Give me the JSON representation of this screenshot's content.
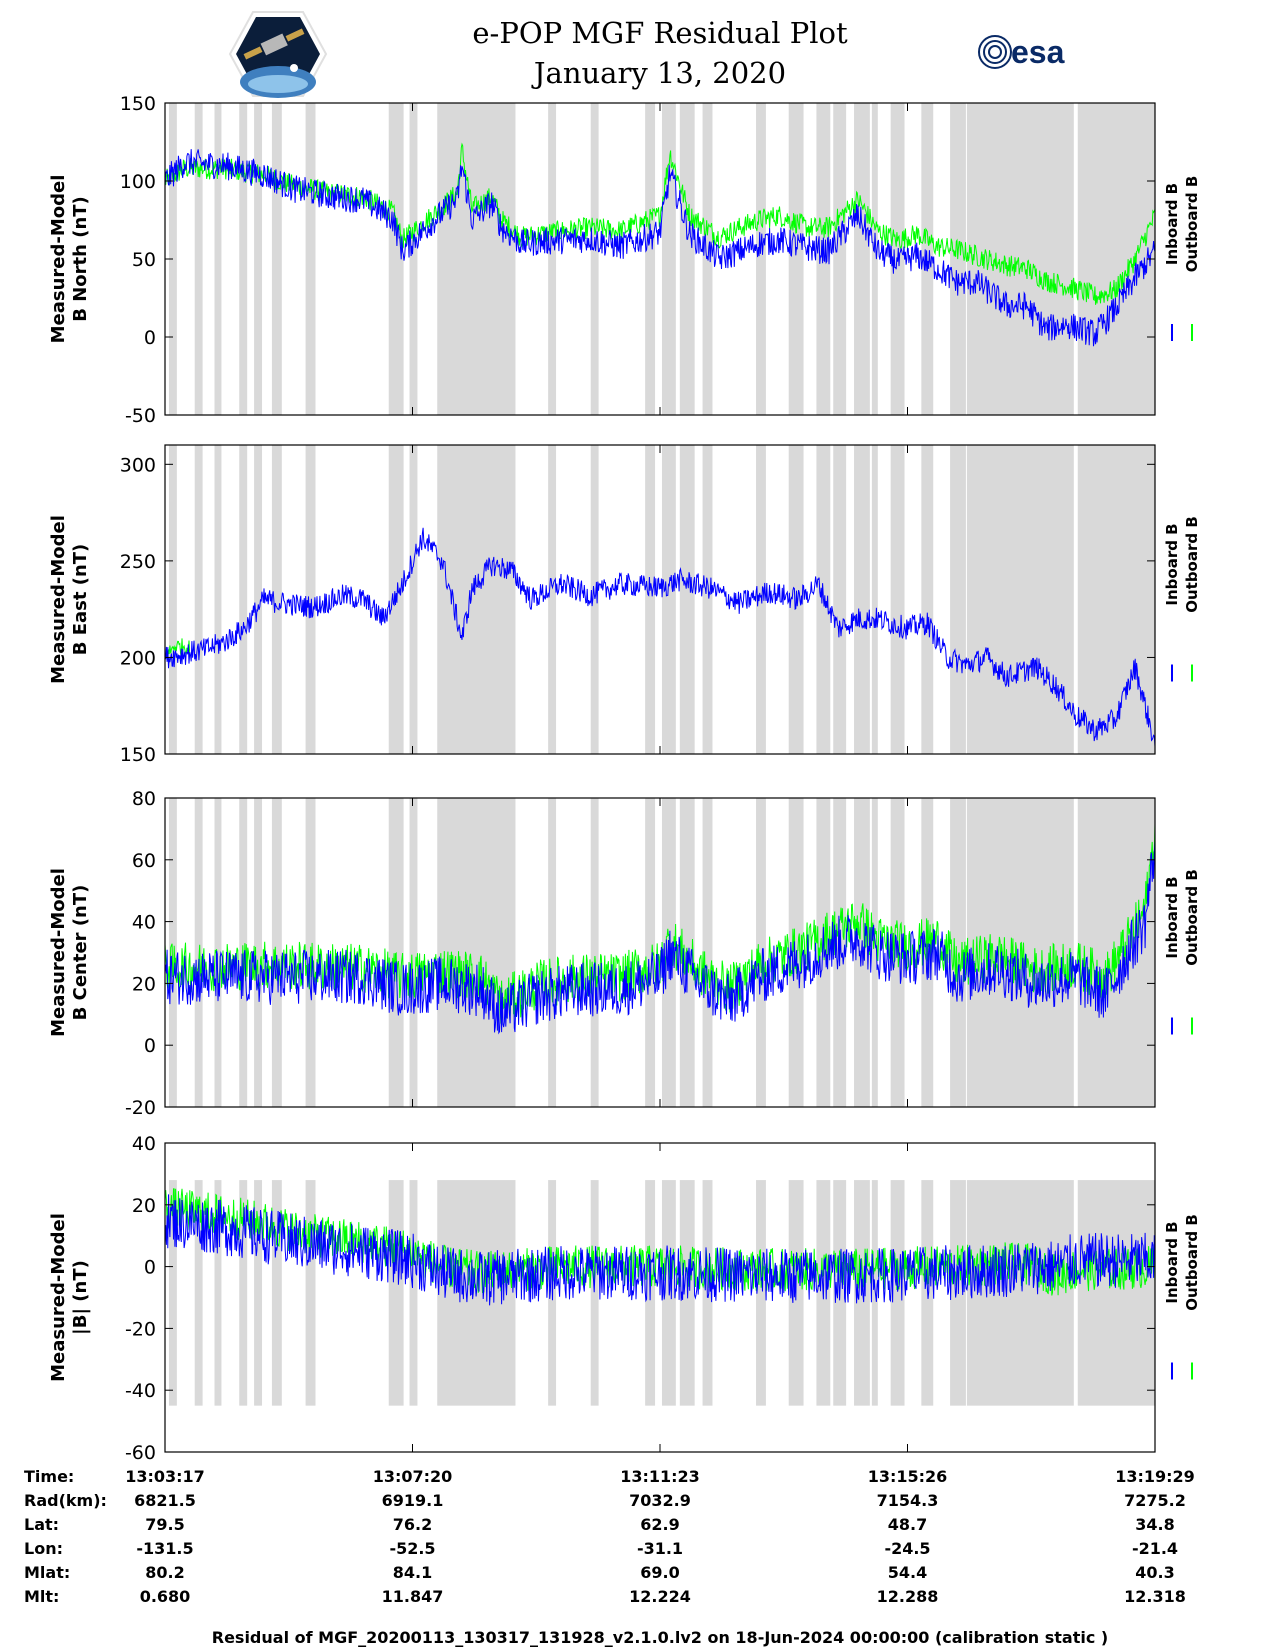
{
  "title": "e-POP MGF Residual Plot",
  "subtitle": "January 13, 2020",
  "logos": {
    "left_icon": "cassiope-mission-logo",
    "right_text": "esa"
  },
  "colors": {
    "inboard": "#0000ff",
    "outboard": "#00ff00",
    "shade": "#d9d9d9"
  },
  "chart_data": [
    {
      "type": "line",
      "ylabel_line1": "Measured-Model",
      "ylabel_line2": "B North (nT)",
      "ylim": [
        -50,
        150
      ],
      "yticks": [
        150,
        100,
        50,
        0,
        -50
      ],
      "legend": [
        "Inboard B",
        "Outboard B"
      ],
      "series": [
        {
          "name": "Inboard B",
          "key": [
            [
              0,
              100
            ],
            [
              0.02,
              112
            ],
            [
              0.06,
              110
            ],
            [
              0.1,
              104
            ],
            [
              0.13,
              95
            ],
            [
              0.17,
              90
            ],
            [
              0.2,
              88
            ],
            [
              0.23,
              76
            ],
            [
              0.24,
              55
            ],
            [
              0.27,
              74
            ],
            [
              0.295,
              88
            ],
            [
              0.3,
              110
            ],
            [
              0.31,
              75
            ],
            [
              0.33,
              86
            ],
            [
              0.34,
              70
            ],
            [
              0.36,
              60
            ],
            [
              0.4,
              62
            ],
            [
              0.43,
              63
            ],
            [
              0.46,
              58
            ],
            [
              0.5,
              67
            ],
            [
              0.51,
              105
            ],
            [
              0.53,
              66
            ],
            [
              0.56,
              50
            ],
            [
              0.58,
              55
            ],
            [
              0.6,
              60
            ],
            [
              0.62,
              62
            ],
            [
              0.65,
              57
            ],
            [
              0.67,
              55
            ],
            [
              0.7,
              78
            ],
            [
              0.72,
              55
            ],
            [
              0.74,
              48
            ],
            [
              0.76,
              52
            ],
            [
              0.78,
              44
            ],
            [
              0.8,
              35
            ],
            [
              0.82,
              35
            ],
            [
              0.85,
              20
            ],
            [
              0.87,
              20
            ],
            [
              0.89,
              5
            ],
            [
              0.91,
              8
            ],
            [
              0.94,
              2
            ],
            [
              0.96,
              18
            ],
            [
              0.98,
              38
            ],
            [
              1.0,
              55
            ]
          ],
          "noise": 9
        },
        {
          "name": "Outboard B",
          "key": [
            [
              0,
              100
            ],
            [
              0.02,
              108
            ],
            [
              0.06,
              108
            ],
            [
              0.1,
              104
            ],
            [
              0.13,
              97
            ],
            [
              0.17,
              92
            ],
            [
              0.2,
              90
            ],
            [
              0.23,
              80
            ],
            [
              0.24,
              62
            ],
            [
              0.27,
              78
            ],
            [
              0.295,
              92
            ],
            [
              0.3,
              120
            ],
            [
              0.31,
              82
            ],
            [
              0.33,
              90
            ],
            [
              0.34,
              75
            ],
            [
              0.36,
              64
            ],
            [
              0.4,
              68
            ],
            [
              0.43,
              70
            ],
            [
              0.46,
              68
            ],
            [
              0.5,
              78
            ],
            [
              0.51,
              118
            ],
            [
              0.53,
              78
            ],
            [
              0.56,
              64
            ],
            [
              0.58,
              70
            ],
            [
              0.6,
              75
            ],
            [
              0.62,
              78
            ],
            [
              0.65,
              70
            ],
            [
              0.67,
              70
            ],
            [
              0.7,
              88
            ],
            [
              0.72,
              68
            ],
            [
              0.74,
              62
            ],
            [
              0.76,
              66
            ],
            [
              0.78,
              58
            ],
            [
              0.8,
              56
            ],
            [
              0.82,
              52
            ],
            [
              0.85,
              46
            ],
            [
              0.87,
              44
            ],
            [
              0.89,
              36
            ],
            [
              0.91,
              33
            ],
            [
              0.94,
              26
            ],
            [
              0.96,
              30
            ],
            [
              0.98,
              50
            ],
            [
              1.0,
              78
            ]
          ],
          "noise": 7
        }
      ]
    },
    {
      "type": "line",
      "ylabel_line1": "Measured-Model",
      "ylabel_line2": "B East (nT)",
      "ylim": [
        150,
        310
      ],
      "yticks": [
        300,
        250,
        200,
        150
      ],
      "legend": [
        "Inboard B",
        "Outboard B"
      ],
      "series": [
        {
          "name": "Inboard B",
          "key": [
            [
              0,
              200
            ],
            [
              0.02,
              202
            ],
            [
              0.04,
              204
            ],
            [
              0.06,
              208
            ],
            [
              0.08,
              215
            ],
            [
              0.1,
              230
            ],
            [
              0.12,
              228
            ],
            [
              0.15,
              226
            ],
            [
              0.18,
              232
            ],
            [
              0.2,
              230
            ],
            [
              0.22,
              220
            ],
            [
              0.24,
              238
            ],
            [
              0.26,
              262
            ],
            [
              0.28,
              250
            ],
            [
              0.3,
              210
            ],
            [
              0.31,
              235
            ],
            [
              0.33,
              248
            ],
            [
              0.35,
              245
            ],
            [
              0.37,
              230
            ],
            [
              0.4,
              238
            ],
            [
              0.43,
              232
            ],
            [
              0.46,
              238
            ],
            [
              0.5,
              236
            ],
            [
              0.52,
              240
            ],
            [
              0.55,
              236
            ],
            [
              0.58,
              228
            ],
            [
              0.61,
              234
            ],
            [
              0.64,
              230
            ],
            [
              0.66,
              238
            ],
            [
              0.68,
              215
            ],
            [
              0.7,
              220
            ],
            [
              0.72,
              220
            ],
            [
              0.75,
              215
            ],
            [
              0.77,
              218
            ],
            [
              0.79,
              200
            ],
            [
              0.81,
              196
            ],
            [
              0.83,
              200
            ],
            [
              0.85,
              190
            ],
            [
              0.88,
              195
            ],
            [
              0.9,
              185
            ],
            [
              0.92,
              170
            ],
            [
              0.94,
              162
            ],
            [
              0.96,
              168
            ],
            [
              0.98,
              195
            ],
            [
              1.0,
              155
            ]
          ],
          "noise": 6
        },
        {
          "name": "Outboard B",
          "key": [
            [
              0,
              200
            ],
            [
              0.01,
              206
            ],
            [
              0.02,
              206
            ],
            [
              0.025,
              205
            ]
          ],
          "noise": 4
        }
      ]
    },
    {
      "type": "line",
      "ylabel_line1": "Measured-Model",
      "ylabel_line2": "B Center (nT)",
      "ylim": [
        -20,
        80
      ],
      "yticks": [
        80,
        60,
        40,
        20,
        0,
        -20
      ],
      "legend": [
        "Inboard B",
        "Outboard B"
      ],
      "series": [
        {
          "name": "Inboard B",
          "key": [
            [
              0,
              22
            ],
            [
              0.1,
              22
            ],
            [
              0.2,
              22
            ],
            [
              0.24,
              18
            ],
            [
              0.28,
              20
            ],
            [
              0.32,
              18
            ],
            [
              0.34,
              10
            ],
            [
              0.38,
              16
            ],
            [
              0.42,
              18
            ],
            [
              0.46,
              18
            ],
            [
              0.5,
              22
            ],
            [
              0.51,
              30
            ],
            [
              0.54,
              20
            ],
            [
              0.57,
              14
            ],
            [
              0.6,
              22
            ],
            [
              0.65,
              28
            ],
            [
              0.67,
              32
            ],
            [
              0.7,
              35
            ],
            [
              0.72,
              30
            ],
            [
              0.75,
              28
            ],
            [
              0.78,
              30
            ],
            [
              0.8,
              22
            ],
            [
              0.84,
              25
            ],
            [
              0.88,
              20
            ],
            [
              0.92,
              22
            ],
            [
              0.95,
              16
            ],
            [
              0.97,
              28
            ],
            [
              0.99,
              40
            ],
            [
              1.0,
              65
            ]
          ],
          "noise": 9
        },
        {
          "name": "Outboard B",
          "key": [
            [
              0,
              25
            ],
            [
              0.1,
              26
            ],
            [
              0.2,
              25
            ],
            [
              0.24,
              22
            ],
            [
              0.28,
              24
            ],
            [
              0.32,
              22
            ],
            [
              0.34,
              14
            ],
            [
              0.38,
              20
            ],
            [
              0.42,
              22
            ],
            [
              0.46,
              22
            ],
            [
              0.5,
              26
            ],
            [
              0.51,
              34
            ],
            [
              0.54,
              24
            ],
            [
              0.57,
              18
            ],
            [
              0.6,
              26
            ],
            [
              0.65,
              32
            ],
            [
              0.67,
              36
            ],
            [
              0.7,
              40
            ],
            [
              0.72,
              34
            ],
            [
              0.75,
              32
            ],
            [
              0.78,
              34
            ],
            [
              0.8,
              26
            ],
            [
              0.84,
              29
            ],
            [
              0.88,
              24
            ],
            [
              0.92,
              26
            ],
            [
              0.95,
              22
            ],
            [
              0.97,
              32
            ],
            [
              0.99,
              44
            ],
            [
              1.0,
              70
            ]
          ],
          "noise": 8
        }
      ]
    },
    {
      "type": "line",
      "ylabel_line1": "Measured-Model",
      "ylabel_line2": "|B| (nT)",
      "ylim": [
        -60,
        40
      ],
      "yticks": [
        40,
        20,
        0,
        -20,
        -40,
        -60
      ],
      "legend": [
        "Inboard B",
        "Outboard B"
      ],
      "series": [
        {
          "name": "Inboard B",
          "key": [
            [
              0,
              15
            ],
            [
              0.05,
              13
            ],
            [
              0.1,
              10
            ],
            [
              0.15,
              7
            ],
            [
              0.2,
              5
            ],
            [
              0.25,
              2
            ],
            [
              0.28,
              -2
            ],
            [
              0.32,
              -4
            ],
            [
              0.36,
              -3
            ],
            [
              0.4,
              -2
            ],
            [
              0.5,
              -2
            ],
            [
              0.6,
              -3
            ],
            [
              0.7,
              -3
            ],
            [
              0.8,
              -2
            ],
            [
              0.85,
              -1
            ],
            [
              0.88,
              0
            ],
            [
              0.9,
              0
            ],
            [
              0.92,
              2
            ],
            [
              0.95,
              2
            ],
            [
              1.0,
              2
            ]
          ],
          "noise": 9
        },
        {
          "name": "Outboard B",
          "key": [
            [
              0,
              19
            ],
            [
              0.05,
              17
            ],
            [
              0.1,
              14
            ],
            [
              0.15,
              10
            ],
            [
              0.2,
              8
            ],
            [
              0.25,
              5
            ],
            [
              0.28,
              0
            ],
            [
              0.32,
              -2
            ],
            [
              0.36,
              -1
            ],
            [
              0.4,
              0
            ],
            [
              0.5,
              0
            ],
            [
              0.6,
              -1
            ],
            [
              0.7,
              -1
            ],
            [
              0.8,
              0
            ],
            [
              0.85,
              1
            ],
            [
              0.88,
              0
            ],
            [
              0.9,
              -3
            ],
            [
              0.92,
              -1
            ],
            [
              0.95,
              -1
            ],
            [
              1.0,
              0
            ]
          ],
          "noise": 7
        }
      ]
    }
  ],
  "shaded_intervals": [
    [
      0.004,
      0.012
    ],
    [
      0.03,
      0.038
    ],
    [
      0.05,
      0.057
    ],
    [
      0.075,
      0.083
    ],
    [
      0.09,
      0.098
    ],
    [
      0.108,
      0.118
    ],
    [
      0.142,
      0.152
    ],
    [
      0.226,
      0.241
    ],
    [
      0.247,
      0.255
    ],
    [
      0.275,
      0.354
    ],
    [
      0.387,
      0.395
    ],
    [
      0.43,
      0.438
    ],
    [
      0.485,
      0.495
    ],
    [
      0.502,
      0.516
    ],
    [
      0.52,
      0.535
    ],
    [
      0.543,
      0.553
    ],
    [
      0.597,
      0.607
    ],
    [
      0.63,
      0.645
    ],
    [
      0.658,
      0.672
    ],
    [
      0.675,
      0.688
    ],
    [
      0.696,
      0.712
    ],
    [
      0.714,
      0.72
    ],
    [
      0.733,
      0.747
    ],
    [
      0.764,
      0.776
    ],
    [
      0.793,
      0.809
    ],
    [
      0.81,
      0.918
    ],
    [
      0.922,
      1.0
    ]
  ],
  "shade_ylim": [
    [
      -50,
      150
    ],
    [
      150,
      310
    ],
    [
      -20,
      80
    ],
    [
      -45,
      28
    ]
  ],
  "info_table": {
    "row_labels": [
      "Time:",
      "Rad(km):",
      "Lat:",
      "Lon:",
      "Mlat:",
      "Mlt:"
    ],
    "columns": [
      [
        "13:03:17",
        "6821.5",
        "79.5",
        "-131.5",
        "80.2",
        "0.680"
      ],
      [
        "13:07:20",
        "6919.1",
        "76.2",
        "-52.5",
        "84.1",
        "11.847"
      ],
      [
        "13:11:23",
        "7032.9",
        "62.9",
        "-31.1",
        "69.0",
        "12.224"
      ],
      [
        "13:15:26",
        "7154.3",
        "48.7",
        "-24.5",
        "54.4",
        "12.288"
      ],
      [
        "13:19:29",
        "7275.2",
        "34.8",
        "-21.4",
        "40.3",
        "12.318"
      ]
    ]
  },
  "footer": "Residual of MGF_20200113_130317_131928_v2.1.0.lv2 on 18-Jun-2024 00:00:00 (calibration static )"
}
